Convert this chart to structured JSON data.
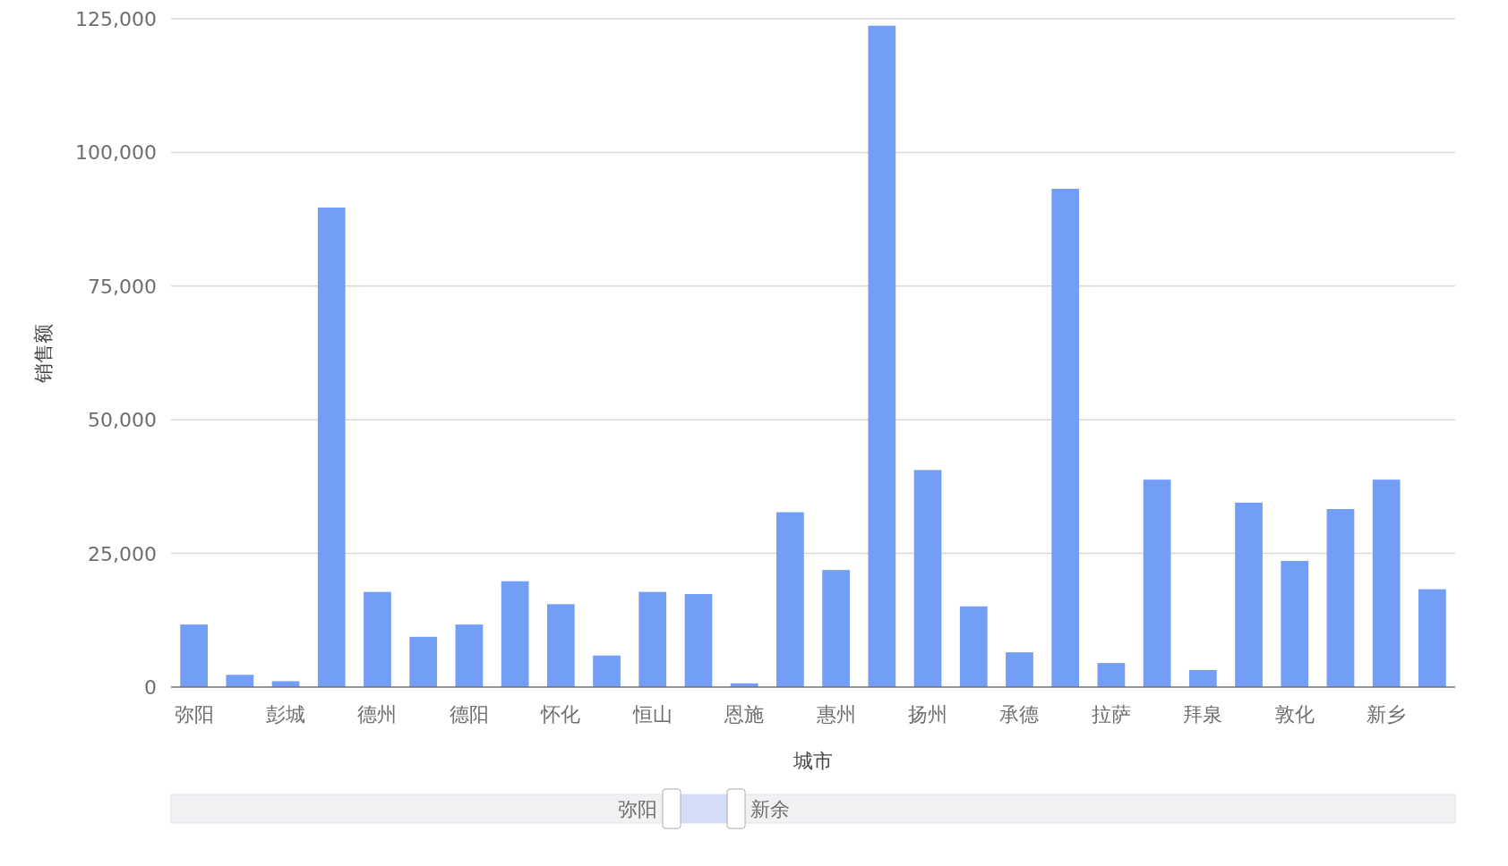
{
  "chart_data": {
    "type": "bar",
    "xlabel": "城市",
    "ylabel": "销售额",
    "categories": [
      "弥阳",
      null,
      "彭城",
      null,
      "德州",
      null,
      "德阳",
      null,
      "怀化",
      null,
      "恒山",
      null,
      "恩施",
      null,
      "惠州",
      null,
      "扬州",
      null,
      "承德",
      null,
      "拉萨",
      null,
      "拜泉",
      null,
      "敦化",
      null,
      "新乡",
      null
    ],
    "values": [
      11700,
      2300,
      1100,
      89700,
      17800,
      9400,
      11700,
      19800,
      15500,
      5900,
      17800,
      17400,
      700,
      32700,
      21900,
      123700,
      40600,
      15100,
      6500,
      93200,
      4500,
      38800,
      3200,
      34500,
      23600,
      33300,
      38800,
      18300
    ],
    "color": "#739ef6",
    "ylim": [
      0,
      125000
    ],
    "yticks": [
      {
        "value": 0,
        "label": "0"
      },
      {
        "value": 25000,
        "label": "25,000"
      },
      {
        "value": 50000,
        "label": "50,000"
      },
      {
        "value": 75000,
        "label": "75,000"
      },
      {
        "value": 100000,
        "label": "100,000"
      },
      {
        "value": 125000,
        "label": "125,000"
      }
    ],
    "grid": "y",
    "annotations": [
      "弥阳",
      "新余"
    ]
  }
}
